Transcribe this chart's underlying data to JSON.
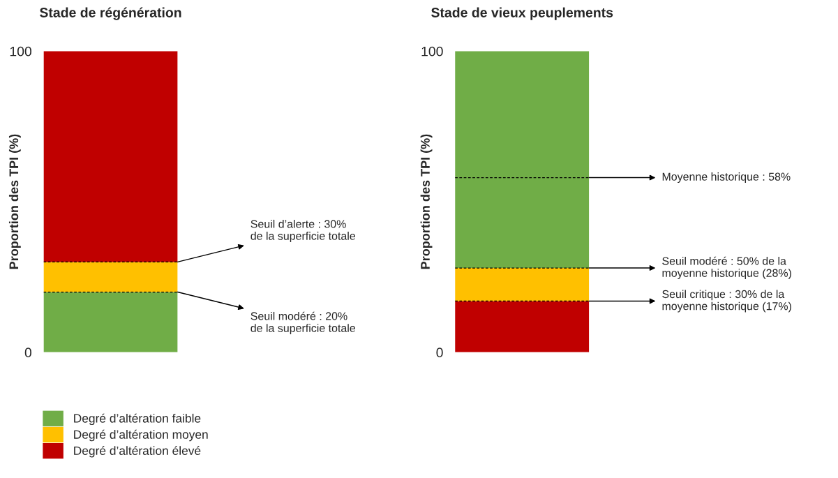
{
  "chart_data": [
    {
      "type": "bar",
      "title": "Stade de régénération",
      "ylabel": "Proportion des TPI (%)",
      "categories": [
        null
      ],
      "stacked": true,
      "ylim": [
        0,
        100
      ],
      "yticks": [
        0,
        100
      ],
      "grid": false,
      "legend": "bottom",
      "series": [
        {
          "name": "Degré d’altération faible",
          "color": "#70ad47",
          "values": [
            20
          ]
        },
        {
          "name": "Degré d’altération moyen",
          "color": "#ffc000",
          "values": [
            10
          ]
        },
        {
          "name": "Degré d’altération élevé",
          "color": "#c00000",
          "values": [
            70
          ]
        }
      ],
      "ref_lines": [
        {
          "axis": "y",
          "value": 30,
          "label": "Seuil d’alerte : 30%\nde la superficie totale",
          "line_style": "dashed",
          "color": "#000000"
        },
        {
          "axis": "y",
          "value": 20,
          "label": "Seuil modéré : 20%\nde la superficie totale",
          "line_style": "dashed",
          "color": "#000000"
        }
      ]
    },
    {
      "type": "bar",
      "title": "Stade de vieux peuplements",
      "ylabel": "Proportion des TPI (%)",
      "categories": [
        null
      ],
      "stacked": true,
      "ylim": [
        0,
        100
      ],
      "yticks": [
        0,
        100
      ],
      "grid": false,
      "series": [
        {
          "color": "#c00000",
          "values": [
            17
          ]
        },
        {
          "color": "#ffc000",
          "values": [
            11
          ]
        },
        {
          "color": "#70ad47",
          "values": [
            72
          ]
        }
      ],
      "ref_lines": [
        {
          "axis": "y",
          "value": 58,
          "label": "Moyenne historique : 58%",
          "line_style": "dashed",
          "color": "#000000"
        },
        {
          "axis": "y",
          "value": 28,
          "label": "Seuil modéré : 50% de la\nmoyenne historique (28%)",
          "line_style": "dashed",
          "color": "#000000"
        },
        {
          "axis": "y",
          "value": 17,
          "label": "Seuil critique : 30% de la\nmoyenne historique (17%)",
          "line_style": "dashed",
          "color": "#000000"
        }
      ]
    }
  ]
}
